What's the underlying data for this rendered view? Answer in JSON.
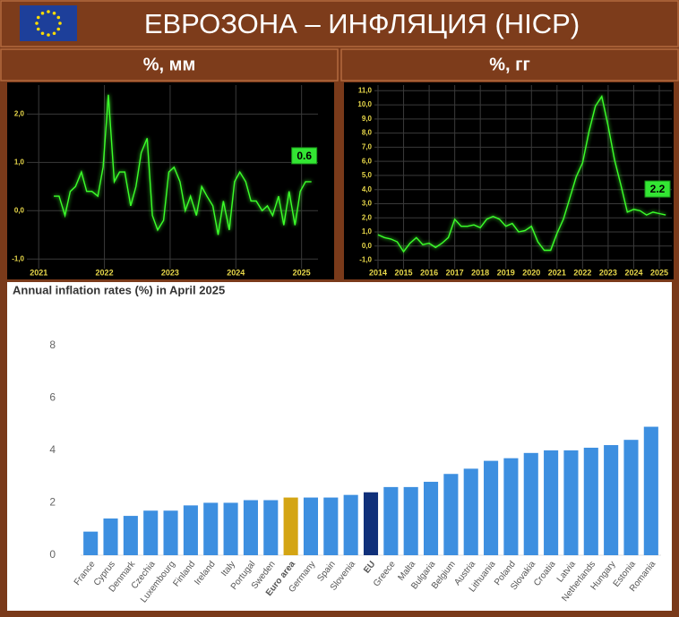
{
  "header": {
    "title": "ЕВРОЗОНА – ИНФЛЯЦИЯ (HICP)"
  },
  "chart_data": [
    {
      "type": "line",
      "title": "%, мм",
      "color": "#3cff2a",
      "grid": true,
      "background": "#000000",
      "x": [
        2021.23,
        2021.31,
        2021.4,
        2021.48,
        2021.56,
        2021.65,
        2021.73,
        2021.81,
        2021.9,
        2021.98,
        2022.06,
        2022.15,
        2022.23,
        2022.31,
        2022.4,
        2022.48,
        2022.56,
        2022.65,
        2022.73,
        2022.81,
        2022.9,
        2022.98,
        2023.06,
        2023.15,
        2023.23,
        2023.31,
        2023.4,
        2023.48,
        2023.56,
        2023.65,
        2023.73,
        2023.81,
        2023.9,
        2023.98,
        2024.06,
        2024.15,
        2024.23,
        2024.31,
        2024.4,
        2024.48,
        2024.56,
        2024.65,
        2024.73,
        2024.81,
        2024.9,
        2024.98,
        2025.06,
        2025.15
      ],
      "values": [
        0.3,
        0.3,
        -0.1,
        0.4,
        0.5,
        0.8,
        0.4,
        0.4,
        0.3,
        0.9,
        2.4,
        0.6,
        0.8,
        0.8,
        0.1,
        0.5,
        1.2,
        1.5,
        -0.1,
        -0.4,
        -0.2,
        0.8,
        0.9,
        0.6,
        0.0,
        0.3,
        -0.1,
        0.5,
        0.3,
        0.1,
        -0.5,
        0.2,
        -0.4,
        0.6,
        0.8,
        0.6,
        0.2,
        0.2,
        0.0,
        0.1,
        -0.1,
        0.3,
        -0.3,
        0.4,
        -0.3,
        0.4,
        0.6,
        0.6
      ],
      "annotation": "0.6",
      "xlim": [
        2020.82,
        2025.25
      ],
      "xticks": [
        2021,
        2022,
        2023,
        2024,
        2025
      ],
      "ylim": [
        -1.2,
        2.6
      ],
      "yticks": [
        {
          "value": 2,
          "label": "2,0"
        },
        {
          "value": 1,
          "label": "1,0"
        },
        {
          "value": 0,
          "label": "0,0"
        },
        {
          "value": -1,
          "label": "-1,0"
        }
      ]
    },
    {
      "type": "line",
      "title": "%, гг",
      "color": "#3cff2a",
      "grid": true,
      "background": "#000000",
      "x": [
        2014,
        2014.25,
        2014.5,
        2014.75,
        2015,
        2015.25,
        2015.5,
        2015.75,
        2016,
        2016.25,
        2016.5,
        2016.75,
        2017,
        2017.25,
        2017.5,
        2017.75,
        2018,
        2018.25,
        2018.5,
        2018.75,
        2019,
        2019.25,
        2019.5,
        2019.75,
        2020,
        2020.25,
        2020.5,
        2020.75,
        2021,
        2021.25,
        2021.5,
        2021.75,
        2022,
        2022.25,
        2022.5,
        2022.75,
        2023,
        2023.25,
        2023.5,
        2023.75,
        2024,
        2024.25,
        2024.5,
        2024.75,
        2025,
        2025.25
      ],
      "values": [
        0.8,
        0.6,
        0.5,
        0.3,
        -0.4,
        0.2,
        0.6,
        0.1,
        0.2,
        -0.1,
        0.2,
        0.6,
        1.9,
        1.4,
        1.4,
        1.5,
        1.3,
        1.9,
        2.1,
        1.9,
        1.4,
        1.6,
        1.0,
        1.1,
        1.4,
        0.3,
        -0.3,
        -0.3,
        0.9,
        1.9,
        3.4,
        4.9,
        5.9,
        8.1,
        9.9,
        10.6,
        8.5,
        6.1,
        4.3,
        2.4,
        2.6,
        2.5,
        2.2,
        2.4,
        2.3,
        2.2
      ],
      "annotation": "2.2",
      "xlim": [
        2013.86,
        2025.49
      ],
      "xticks": [
        2014,
        2015,
        2016,
        2017,
        2018,
        2019,
        2020,
        2021,
        2022,
        2023,
        2024,
        2025
      ],
      "ylim": [
        -1.6,
        11.4
      ],
      "yticks": [
        {
          "value": 11,
          "label": "11,0"
        },
        {
          "value": 10,
          "label": "10,0"
        },
        {
          "value": 9,
          "label": "9,0"
        },
        {
          "value": 8,
          "label": "8,0"
        },
        {
          "value": 7,
          "label": "7,0"
        },
        {
          "value": 6,
          "label": "6,0"
        },
        {
          "value": 5,
          "label": "5,0"
        },
        {
          "value": 4,
          "label": "4,0"
        },
        {
          "value": 3,
          "label": "3,0"
        },
        {
          "value": 2,
          "label": "2,0"
        },
        {
          "value": 1,
          "label": "1,0"
        },
        {
          "value": 0,
          "label": "0,0"
        },
        {
          "value": -1,
          "label": "-1,0"
        }
      ]
    },
    {
      "type": "bar",
      "title": "Annual inflation rates (%) in April 2025",
      "grid": false,
      "background": "#ffffff",
      "categories": [
        "France",
        "Cyprus",
        "Denmark",
        "Czechia",
        "Luxembourg",
        "Finland",
        "Ireland",
        "Italy",
        "Portugal",
        "Sweden",
        "Euro area",
        "Germany",
        "Spain",
        "Slovenia",
        "EU",
        "Greece",
        "Malta",
        "Bulgaria",
        "Belgium",
        "Austria",
        "Lithuania",
        "Poland",
        "Slovakia",
        "Croatia",
        "Latvia",
        "Netherlands",
        "Hungary",
        "Estonia",
        "Romania"
      ],
      "values": [
        0.9,
        1.4,
        1.5,
        1.7,
        1.7,
        1.9,
        2.0,
        2.0,
        2.1,
        2.1,
        2.2,
        2.2,
        2.2,
        2.3,
        2.4,
        2.6,
        2.6,
        2.8,
        3.1,
        3.3,
        3.6,
        3.7,
        3.9,
        4.0,
        4.0,
        4.1,
        4.2,
        4.4,
        4.9
      ],
      "colors": [
        "#3d8fe0",
        "#3d8fe0",
        "#3d8fe0",
        "#3d8fe0",
        "#3d8fe0",
        "#3d8fe0",
        "#3d8fe0",
        "#3d8fe0",
        "#3d8fe0",
        "#3d8fe0",
        "#d4a514",
        "#3d8fe0",
        "#3d8fe0",
        "#3d8fe0",
        "#10307a",
        "#3d8fe0",
        "#3d8fe0",
        "#3d8fe0",
        "#3d8fe0",
        "#3d8fe0",
        "#3d8fe0",
        "#3d8fe0",
        "#3d8fe0",
        "#3d8fe0",
        "#3d8fe0",
        "#3d8fe0",
        "#3d8fe0",
        "#3d8fe0",
        "#3d8fe0"
      ],
      "ylim": [
        0,
        8.3
      ],
      "yticks": [
        0,
        2,
        4,
        6,
        8
      ]
    }
  ]
}
